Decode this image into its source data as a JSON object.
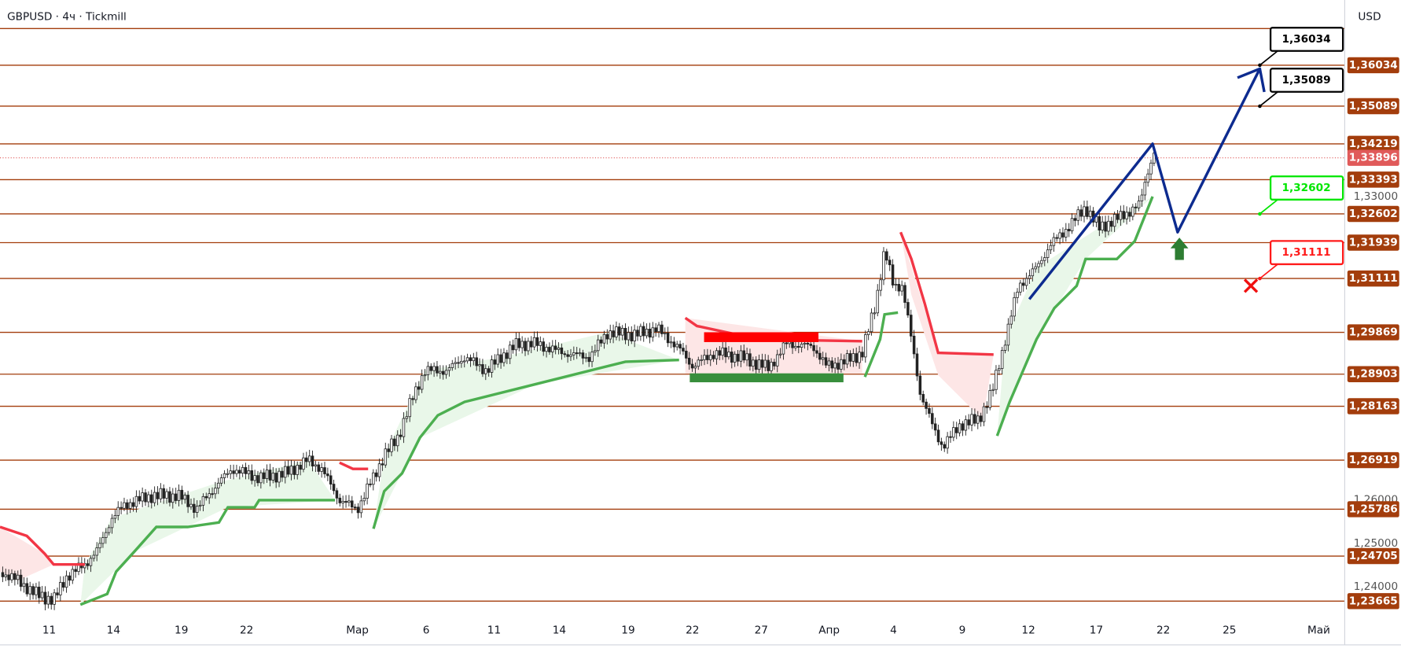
{
  "header": {
    "title": "GBPUSD · 4ч · Tickmill",
    "currency": "USD"
  },
  "price_scale": {
    "range": [
      1.23274,
      1.37539
    ]
  },
  "levels": [
    {
      "value": 1.36034,
      "label": "1,36034"
    },
    {
      "value": 1.35089,
      "label": "1,35089"
    },
    {
      "value": 1.34219,
      "label": "1,34219"
    },
    {
      "value": 1.33393,
      "label": "1,33393"
    },
    {
      "value": 1.32602,
      "label": "1,32602"
    },
    {
      "value": 1.31939,
      "label": "1,31939"
    },
    {
      "value": 1.31111,
      "label": "1,31111"
    },
    {
      "value": 1.29869,
      "label": "1,29869"
    },
    {
      "value": 1.28903,
      "label": "1,28903"
    },
    {
      "value": 1.28163,
      "label": "1,28163"
    },
    {
      "value": 1.26919,
      "label": "1,26919"
    },
    {
      "value": 1.25786,
      "label": "1,25786"
    },
    {
      "value": 1.24705,
      "label": "1,24705"
    },
    {
      "value": 1.23665,
      "label": "1,23665"
    }
  ],
  "current_price": {
    "value": 1.33896,
    "label": "1,33896"
  },
  "axis_prices": [
    {
      "value": 1.33,
      "label": "1,33000"
    },
    {
      "value": 1.26,
      "label": "1,26000"
    },
    {
      "value": 1.25,
      "label": "1,25000"
    },
    {
      "value": 1.24,
      "label": "1,24000"
    }
  ],
  "time_axis": [
    "11",
    "14",
    "19",
    "22",
    "Мар",
    "6",
    "11",
    "14",
    "19",
    "22",
    "27",
    "Апр",
    "4",
    "9",
    "12",
    "17",
    "22",
    "25",
    "Май"
  ],
  "callouts": [
    {
      "value": 1.36034,
      "label": "1,36034",
      "color": "#000000"
    },
    {
      "value": 1.35089,
      "label": "1,35089",
      "color": "#000000"
    },
    {
      "value": 1.32602,
      "label": "1,32602",
      "color": "#00e600"
    },
    {
      "value": 1.31111,
      "label": "1,31111",
      "color": "#ff1a1a"
    }
  ]
}
